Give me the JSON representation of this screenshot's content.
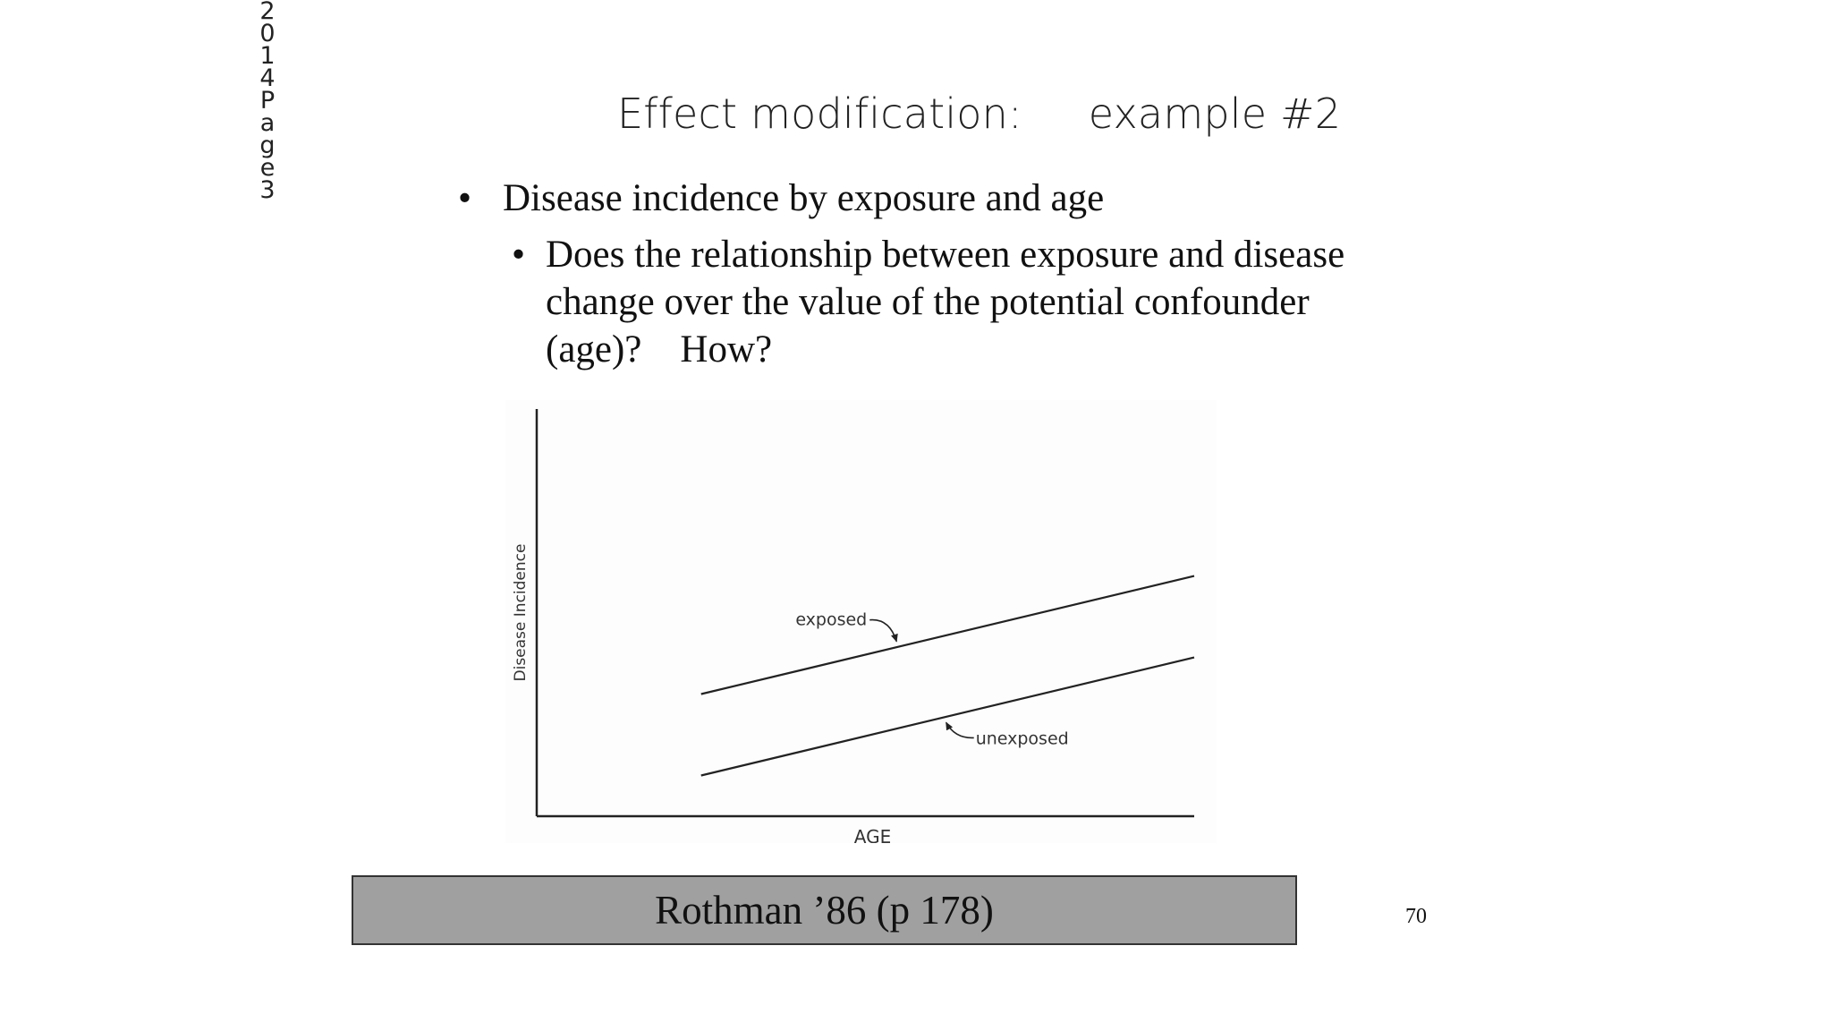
{
  "side_stamp": [
    "2",
    "0",
    "1",
    "4",
    "P",
    "a",
    "g",
    "e",
    "3"
  ],
  "slide": {
    "title": "Effect modification:     example #2",
    "bullet_main": "Disease incidence by exposure and age",
    "bullet_sub_lines": [
      "Does the relationship between exposure and disease",
      "change over the value of the potential confounder",
      "(age)?    How?"
    ],
    "citation": "Rothman ’86 (p 178)",
    "page_number": "70"
  },
  "chart_data": {
    "type": "line",
    "xlabel": "AGE",
    "ylabel": "Disease Incidence",
    "xlim": [
      0,
      10
    ],
    "ylim": [
      0,
      10
    ],
    "grid": false,
    "axis_ticks": false,
    "series": [
      {
        "name": "exposed",
        "x": [
          2.5,
          10.0
        ],
        "y": [
          3.0,
          5.9
        ]
      },
      {
        "name": "unexposed",
        "x": [
          2.5,
          10.0
        ],
        "y": [
          1.0,
          3.9
        ]
      }
    ],
    "annotations": [
      {
        "text": "exposed",
        "points_to_series": "exposed",
        "at_x": 5.5
      },
      {
        "text": "unexposed",
        "points_to_series": "unexposed",
        "at_x": 6.2
      }
    ],
    "colors": {
      "lines": "#222222",
      "axes": "#222222"
    }
  }
}
